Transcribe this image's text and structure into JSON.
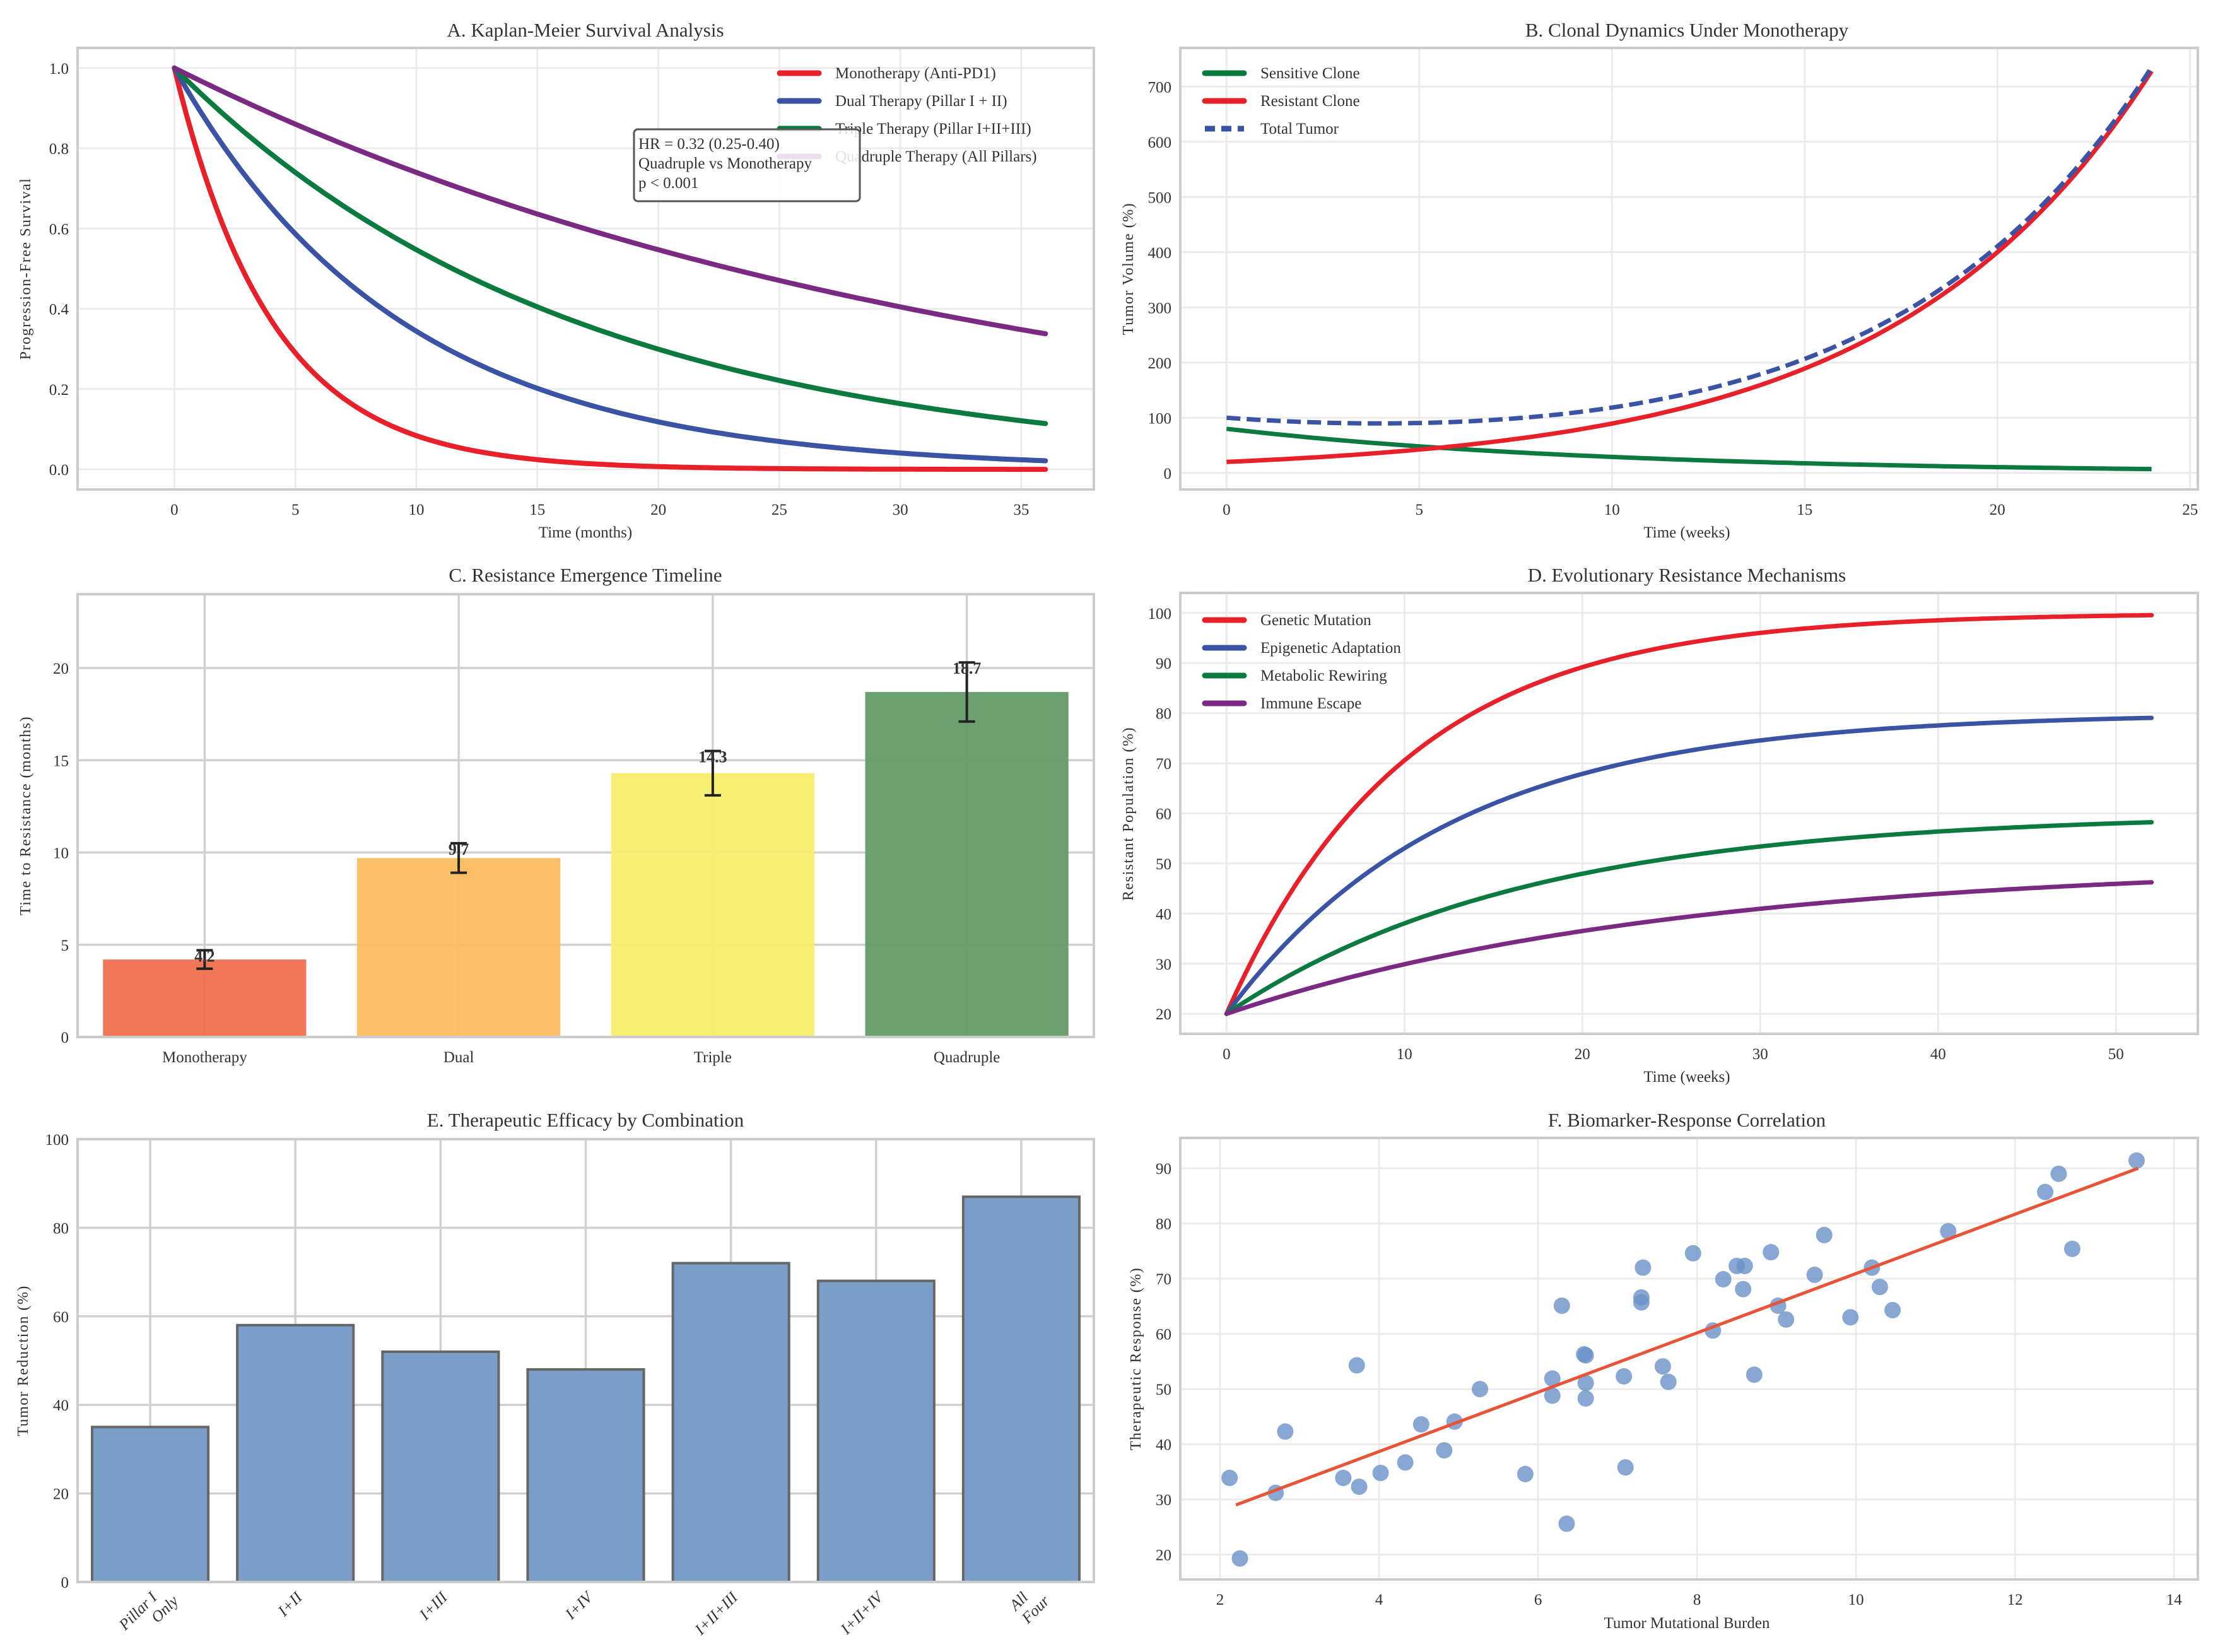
{
  "chart_data": [
    {
      "id": "A",
      "type": "line",
      "title": "A. Kaplan-Meier Survival Analysis",
      "xlabel": "Time (months)",
      "ylabel": "Progression-Free Survival",
      "xlim": [
        -4,
        38
      ],
      "ylim": [
        -0.05,
        1.05
      ],
      "xticks": [
        0,
        5,
        10,
        15,
        20,
        25,
        30,
        35
      ],
      "yticks": [
        0.0,
        0.2,
        0.4,
        0.6,
        0.8,
        1.0
      ],
      "ytick_labels": [
        "0.0",
        "0.2",
        "0.4",
        "0.6",
        "0.8",
        "1.0"
      ],
      "grid": true,
      "legend_position": "top-right",
      "x_range": [
        0,
        36
      ],
      "series": [
        {
          "name": "Monotherapy (Anti-PD1)",
          "color": "#e8202a",
          "model": "exp",
          "median": 2.8
        },
        {
          "name": "Dual Therapy (Pillar I + II)",
          "color": "#3a53a4",
          "model": "exp",
          "median": 6.5
        },
        {
          "name": "Triple Therapy (Pillar I+II+III)",
          "color": "#0b7a3e",
          "model": "exp",
          "median": 11.5
        },
        {
          "name": "Quadruple Therapy (All Pillars)",
          "color": "#7b2a83",
          "model": "exp",
          "median": 23.0
        }
      ],
      "annotation": {
        "lines": [
          "HR = 0.32 (0.25-0.40)",
          "Quadruple vs Monotherapy",
          "p < 0.001"
        ]
      }
    },
    {
      "id": "B",
      "type": "line",
      "title": "B. Clonal Dynamics Under Monotherapy",
      "xlabel": "Time (weeks)",
      "ylabel": "Tumor Volume (%)",
      "xlim": [
        -1.2,
        25.2
      ],
      "ylim": [
        -30,
        770
      ],
      "xticks": [
        0,
        5,
        10,
        15,
        20,
        25
      ],
      "yticks": [
        0,
        100,
        200,
        300,
        400,
        500,
        600,
        700
      ],
      "grid": true,
      "legend_position": "top-left",
      "x_range": [
        0,
        24
      ],
      "series": [
        {
          "name": "Sensitive Clone",
          "color": "#0b7a3e",
          "style": "solid",
          "start": 80,
          "end": 7
        },
        {
          "name": "Resistant Clone",
          "color": "#e8202a",
          "style": "solid",
          "start": 20,
          "end": 728
        },
        {
          "name": "Total Tumor",
          "color": "#3a53a4",
          "style": "dashed",
          "start": 100,
          "end": 735
        }
      ]
    },
    {
      "id": "C",
      "type": "bar",
      "title": "C. Resistance Emergence Timeline",
      "xlabel": "",
      "ylabel": "Time to Resistance (months)",
      "ylim": [
        0,
        24
      ],
      "yticks": [
        0,
        5,
        10,
        15,
        20
      ],
      "grid": true,
      "categories": [
        "Monotherapy",
        "Dual",
        "Triple",
        "Quadruple"
      ],
      "values": [
        4.2,
        9.7,
        14.3,
        18.7
      ],
      "errors": [
        0.5,
        0.8,
        1.2,
        1.6
      ],
      "value_labels": [
        "4.2",
        "9.7",
        "14.3",
        "18.7"
      ],
      "colors": [
        "#f0704f",
        "#fbbd5f",
        "#f5ee6d",
        "#659b69"
      ]
    },
    {
      "id": "D",
      "type": "line",
      "title": "D. Evolutionary Resistance Mechanisms",
      "xlabel": "Time (weeks)",
      "ylabel": "Resistant Population (%)",
      "xlim": [
        -2.6,
        54.6
      ],
      "ylim": [
        16,
        104
      ],
      "xticks": [
        0,
        10,
        20,
        30,
        40,
        50
      ],
      "yticks": [
        20,
        30,
        40,
        50,
        60,
        70,
        80,
        90,
        100
      ],
      "grid": true,
      "legend_position": "top-left",
      "x_range": [
        0,
        52
      ],
      "series": [
        {
          "name": "Genetic Mutation",
          "color": "#e8202a",
          "start": 20,
          "plateau": 100,
          "rate": 0.1
        },
        {
          "name": "Epigenetic Adaptation",
          "color": "#3a53a4",
          "start": 20,
          "plateau": 80,
          "rate": 0.08
        },
        {
          "name": "Metabolic Rewiring",
          "color": "#0b7a3e",
          "start": 20,
          "plateau": 60,
          "rate": 0.06
        },
        {
          "name": "Immune Escape",
          "color": "#7b2a83",
          "start": 20,
          "plateau": 50,
          "rate": 0.04
        }
      ]
    },
    {
      "id": "E",
      "type": "bar",
      "title": "E. Therapeutic Efficacy by Combination",
      "xlabel": "",
      "ylabel": "Tumor Reduction (%)",
      "ylim": [
        0,
        100
      ],
      "yticks": [
        0,
        20,
        40,
        60,
        80,
        100
      ],
      "grid": true,
      "categories": [
        "Pillar I\nOnly",
        "I+II",
        "I+III",
        "I+IV",
        "I+II+III",
        "I+II+IV",
        "All\nFour"
      ],
      "values": [
        35,
        58,
        52,
        48,
        72,
        68,
        87
      ],
      "color": "#7b9ec8",
      "edgecolor": "#666666"
    },
    {
      "id": "F",
      "type": "scatter",
      "title": "F. Biomarker-Response Correlation",
      "xlabel": "Tumor Mutational Burden",
      "ylabel": "Therapeutic Response (%)",
      "xlim": [
        1.5,
        14.3
      ],
      "ylim": [
        15.5,
        95.5
      ],
      "xticks": [
        2,
        4,
        6,
        8,
        10,
        12,
        14
      ],
      "yticks": [
        20,
        30,
        40,
        50,
        60,
        70,
        80,
        90
      ],
      "grid": true,
      "point_color": "#6a92c8",
      "trend_color": "#e8543a",
      "trend_line": {
        "x": [
          2.2,
          13.55
        ],
        "y": [
          29.0,
          90.0
        ]
      },
      "points": [
        [
          2.12,
          33.9
        ],
        [
          2.25,
          19.3
        ],
        [
          2.7,
          31.2
        ],
        [
          2.82,
          42.3
        ],
        [
          3.55,
          33.9
        ],
        [
          3.72,
          54.3
        ],
        [
          3.75,
          32.3
        ],
        [
          4.02,
          34.8
        ],
        [
          4.33,
          36.7
        ],
        [
          4.53,
          43.6
        ],
        [
          4.82,
          38.9
        ],
        [
          4.95,
          44.1
        ],
        [
          5.27,
          50.0
        ],
        [
          5.84,
          34.6
        ],
        [
          6.18,
          51.9
        ],
        [
          6.18,
          48.8
        ],
        [
          6.3,
          65.1
        ],
        [
          6.36,
          25.6
        ],
        [
          6.58,
          56.3
        ],
        [
          6.6,
          56.1
        ],
        [
          6.6,
          51.1
        ],
        [
          6.6,
          48.3
        ],
        [
          7.08,
          52.3
        ],
        [
          7.1,
          35.8
        ],
        [
          7.3,
          66.6
        ],
        [
          7.3,
          65.7
        ],
        [
          7.32,
          72.0
        ],
        [
          7.57,
          54.1
        ],
        [
          7.64,
          51.3
        ],
        [
          7.95,
          74.6
        ],
        [
          8.2,
          60.6
        ],
        [
          8.33,
          69.9
        ],
        [
          8.5,
          72.3
        ],
        [
          8.58,
          68.1
        ],
        [
          8.6,
          72.3
        ],
        [
          8.72,
          52.6
        ],
        [
          8.93,
          74.8
        ],
        [
          9.02,
          65.1
        ],
        [
          9.12,
          62.6
        ],
        [
          9.48,
          70.7
        ],
        [
          9.6,
          77.9
        ],
        [
          9.93,
          63.0
        ],
        [
          10.2,
          72.0
        ],
        [
          10.3,
          68.5
        ],
        [
          10.46,
          64.3
        ],
        [
          11.16,
          78.6
        ],
        [
          12.38,
          85.7
        ],
        [
          12.55,
          89.0
        ],
        [
          12.72,
          75.4
        ],
        [
          13.53,
          91.4
        ]
      ]
    }
  ]
}
